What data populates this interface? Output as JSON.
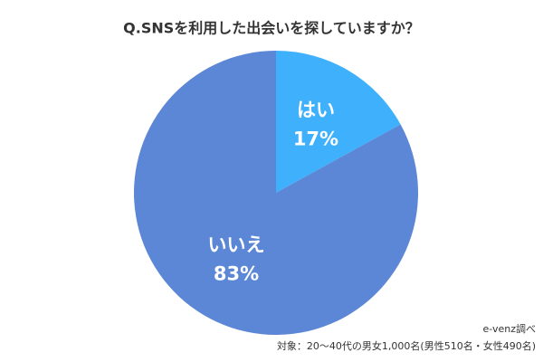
{
  "chart_data": {
    "type": "pie",
    "title": "Q.SNSを利用した出会いを探していますか？",
    "categories": [
      "はい",
      "いいえ"
    ],
    "values": [
      17,
      83
    ],
    "value_labels": [
      "17%",
      "83%"
    ],
    "colors": [
      "#3fb0fb",
      "#5b87d6"
    ],
    "source": "e-venz調べ",
    "note": "対象：20〜40代の男女1,000名(男性510名・女性490名)"
  }
}
